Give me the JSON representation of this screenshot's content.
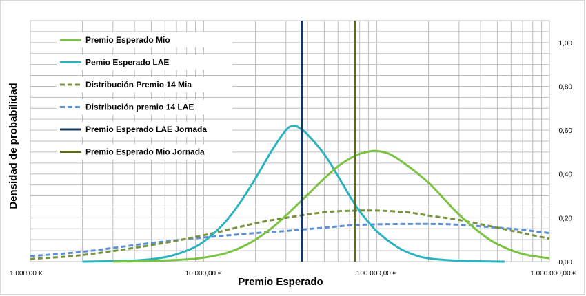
{
  "chart_data": {
    "type": "line",
    "title": "",
    "xlabel": "Premio Esperado",
    "ylabel": "Densidad de probabilidad",
    "x_scale": "log",
    "xlim": [
      1000,
      1000000
    ],
    "ylim": [
      0,
      1.1
    ],
    "x_ticks": [
      {
        "value": 1000,
        "label": "1.000,00 €"
      },
      {
        "value": 10000,
        "label": "10.000,00 €"
      },
      {
        "value": 100000,
        "label": "100.000,00 €"
      },
      {
        "value": 1000000,
        "label": "1.000.000,00 €"
      }
    ],
    "y_ticks": [
      {
        "value": 0,
        "label": "0,00"
      },
      {
        "value": 0.2,
        "label": "0,20"
      },
      {
        "value": 0.4,
        "label": "0,40"
      },
      {
        "value": 0.6,
        "label": "0,60"
      },
      {
        "value": 0.8,
        "label": "0,80"
      },
      {
        "value": 1.0,
        "label": "1,00"
      }
    ],
    "y_axis_side": "right",
    "grid": true,
    "legend_position": "top-left",
    "series": [
      {
        "name": "Premio Esperado Mio",
        "color": "#7cc242",
        "style": "solid",
        "points": [
          [
            3000,
            0.0
          ],
          [
            5000,
            0.003
          ],
          [
            8000,
            0.01
          ],
          [
            10000,
            0.018
          ],
          [
            13000,
            0.035
          ],
          [
            16000,
            0.06
          ],
          [
            20000,
            0.1
          ],
          [
            25000,
            0.155
          ],
          [
            30000,
            0.21
          ],
          [
            40000,
            0.305
          ],
          [
            50000,
            0.38
          ],
          [
            60000,
            0.435
          ],
          [
            70000,
            0.47
          ],
          [
            80000,
            0.492
          ],
          [
            90000,
            0.502
          ],
          [
            100000,
            0.505
          ],
          [
            120000,
            0.49
          ],
          [
            150000,
            0.44
          ],
          [
            200000,
            0.36
          ],
          [
            250000,
            0.28
          ],
          [
            300000,
            0.215
          ],
          [
            400000,
            0.13
          ],
          [
            500000,
            0.08
          ],
          [
            700000,
            0.035
          ],
          [
            1000000,
            0.015
          ]
        ]
      },
      {
        "name": "Pemio Esperado LAE",
        "color": "#2bb3c0",
        "style": "solid",
        "points": [
          [
            2000,
            0.0
          ],
          [
            4000,
            0.005
          ],
          [
            6000,
            0.02
          ],
          [
            8000,
            0.05
          ],
          [
            10000,
            0.09
          ],
          [
            13000,
            0.17
          ],
          [
            16000,
            0.26
          ],
          [
            20000,
            0.38
          ],
          [
            25000,
            0.51
          ],
          [
            30000,
            0.6
          ],
          [
            33000,
            0.62
          ],
          [
            36000,
            0.61
          ],
          [
            40000,
            0.58
          ],
          [
            50000,
            0.49
          ],
          [
            60000,
            0.39
          ],
          [
            70000,
            0.3
          ],
          [
            80000,
            0.23
          ],
          [
            100000,
            0.14
          ],
          [
            130000,
            0.07
          ],
          [
            160000,
            0.035
          ],
          [
            200000,
            0.015
          ],
          [
            300000,
            0.004
          ],
          [
            550000,
            0.0
          ]
        ]
      },
      {
        "name": "Distribución Premio 14 Mia",
        "color": "#77933c",
        "style": "dashed",
        "points": [
          [
            1000,
            0.012
          ],
          [
            2000,
            0.03
          ],
          [
            5000,
            0.075
          ],
          [
            10000,
            0.12
          ],
          [
            20000,
            0.175
          ],
          [
            30000,
            0.2
          ],
          [
            50000,
            0.225
          ],
          [
            70000,
            0.232
          ],
          [
            100000,
            0.233
          ],
          [
            150000,
            0.225
          ],
          [
            200000,
            0.21
          ],
          [
            300000,
            0.19
          ],
          [
            500000,
            0.155
          ],
          [
            700000,
            0.13
          ],
          [
            1000000,
            0.105
          ]
        ]
      },
      {
        "name": "Distribución premio 14 LAE",
        "color": "#5b8fd6",
        "style": "dashed",
        "points": [
          [
            1000,
            0.025
          ],
          [
            2000,
            0.045
          ],
          [
            5000,
            0.085
          ],
          [
            10000,
            0.11
          ],
          [
            20000,
            0.13
          ],
          [
            30000,
            0.14
          ],
          [
            50000,
            0.155
          ],
          [
            70000,
            0.165
          ],
          [
            100000,
            0.17
          ],
          [
            200000,
            0.172
          ],
          [
            300000,
            0.168
          ],
          [
            500000,
            0.155
          ],
          [
            700000,
            0.145
          ],
          [
            1000000,
            0.13
          ]
        ]
      },
      {
        "name": "Premio Esperado LAE Jornada",
        "color": "#17375e",
        "style": "vertical",
        "x": 37000
      },
      {
        "name": "Premio Esperado Mio Jornada",
        "color": "#5e6b1e",
        "style": "vertical",
        "x": 75000
      }
    ]
  }
}
